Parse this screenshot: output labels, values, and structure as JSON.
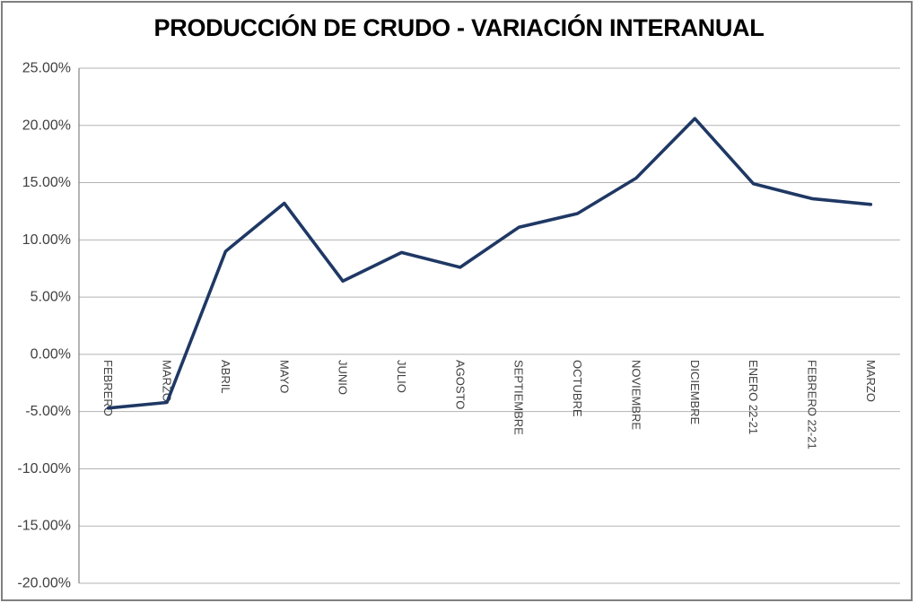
{
  "chart_data": {
    "type": "line",
    "title": "PRODUCCIÓN DE CRUDO - VARIACIÓN INTERANUAL",
    "xlabel": "",
    "ylabel": "",
    "categories": [
      "FEBRERO",
      "MARZO",
      "ABRIL",
      "MAYO",
      "JUNIO",
      "JULIO",
      "AGOSTO",
      "SEPTIEMBRE",
      "OCTUBRE",
      "NOVIEMBRE",
      "DICIEMBRE",
      "ENERO 22-21",
      "FEBRERO 22-21",
      "MARZO"
    ],
    "values": [
      -4.7,
      -4.2,
      9.0,
      13.2,
      6.4,
      8.9,
      7.6,
      11.1,
      12.3,
      15.4,
      20.6,
      14.9,
      13.6,
      13.1
    ],
    "unit": "%",
    "ylim": [
      -20,
      25
    ],
    "ytick_step": 5,
    "ytick_labels": [
      "25.00%",
      "20.00%",
      "15.00%",
      "10.00%",
      "5.00%",
      "0.00%",
      "-5.00%",
      "-10.00%",
      "-15.00%",
      "-20.00%"
    ],
    "grid": true,
    "legend": false,
    "x_labels_rotation_deg": 90,
    "line_color": "#1F3864",
    "grid_color": "#B3B3B3",
    "axis_color": "#8C8C8C",
    "tick_text_color": "#404040",
    "border_color": "#7F7F7F",
    "background_color": "#FFFFFF"
  }
}
